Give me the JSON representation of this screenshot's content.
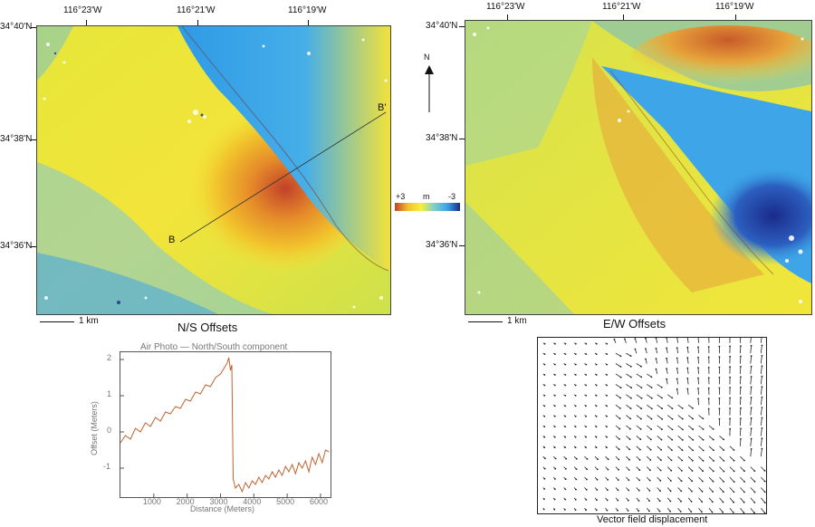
{
  "left_panel": {
    "title": "N/S Offsets",
    "scale_bar": "1 km",
    "top_coords": [
      "116°23'W",
      "116°21'W",
      "116°19'W"
    ],
    "left_coords": [
      "34°40'N",
      "34°38'N",
      "34°36'N"
    ],
    "profile_labels": {
      "start": "B",
      "end": "B'"
    }
  },
  "right_panel": {
    "title": "E/W Offsets",
    "scale_bar": "1 km",
    "top_coords": [
      "116°23'W",
      "116°21'W",
      "116°19'W"
    ],
    "left_coords": [
      "34°40'N",
      "34°38'N",
      "34°36'N"
    ]
  },
  "north_arrow": {
    "label": "N"
  },
  "color_legend": {
    "max": "+3",
    "unit": "m",
    "min": "-3",
    "colors": [
      "#c2412a",
      "#f0c02a",
      "#f7ef3a",
      "#7ed0c8",
      "#3ea6e8",
      "#1a2b8a"
    ]
  },
  "profile_chart": {
    "title": "Air Photo — North/South component",
    "xlabel": "Distance (Meters)",
    "ylabel": "Offset (Meters)",
    "x_ticks": [
      "1000",
      "2000",
      "3000",
      "4000",
      "5000",
      "6000"
    ],
    "y_ticks": [
      "2",
      "1",
      "0",
      "-1"
    ]
  },
  "chart_data": {
    "type": "line",
    "title": "Air Photo — North/South component",
    "xlabel": "Distance (Meters)",
    "ylabel": "Offset (Meters)",
    "xlim": [
      0,
      6300
    ],
    "ylim": [
      -1.8,
      2.2
    ],
    "grid": false,
    "series": [
      {
        "color": "#c0622e",
        "x": [
          0,
          150,
          300,
          450,
          600,
          750,
          900,
          1050,
          1200,
          1350,
          1500,
          1650,
          1800,
          1950,
          2100,
          2250,
          2400,
          2550,
          2700,
          2850,
          3000,
          3100,
          3200,
          3250,
          3300,
          3340,
          3380,
          3450,
          3550,
          3650,
          3750,
          3850,
          3950,
          4050,
          4150,
          4250,
          4350,
          4450,
          4550,
          4650,
          4750,
          4850,
          4950,
          5050,
          5150,
          5250,
          5350,
          5450,
          5550,
          5650,
          5750,
          5850,
          5950,
          6050,
          6150,
          6250
        ],
        "y": [
          -0.3,
          -0.1,
          -0.2,
          0.1,
          0.0,
          0.25,
          0.15,
          0.4,
          0.3,
          0.55,
          0.5,
          0.7,
          0.65,
          0.9,
          0.85,
          1.1,
          1.05,
          1.3,
          1.25,
          1.5,
          1.6,
          1.75,
          1.9,
          2.05,
          1.7,
          1.85,
          -1.3,
          -1.55,
          -1.45,
          -1.65,
          -1.4,
          -1.55,
          -1.35,
          -1.45,
          -1.25,
          -1.4,
          -1.2,
          -1.3,
          -1.1,
          -1.25,
          -1.05,
          -1.2,
          -0.95,
          -1.1,
          -0.9,
          -1.15,
          -0.85,
          -1.0,
          -0.8,
          -1.1,
          -0.7,
          -0.9,
          -0.6,
          -0.85,
          -0.5,
          -0.55
        ]
      }
    ]
  },
  "vector_field": {
    "caption": "Vector field displacement"
  }
}
